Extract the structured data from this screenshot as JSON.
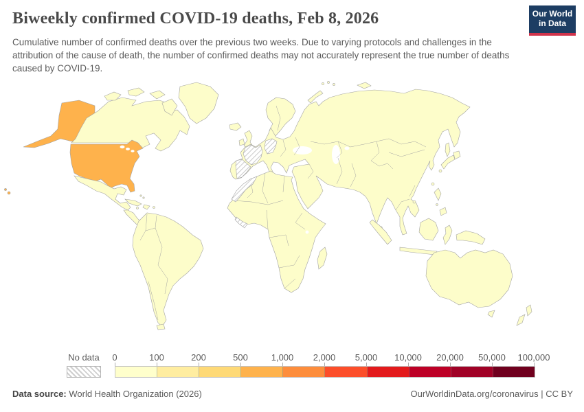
{
  "header": {
    "title": "Biweekly confirmed COVID-19 deaths, Feb 8, 2026",
    "subtitle": "Cumulative number of confirmed deaths over the previous two weeks. Due to varying protocols and challenges in the attribution of the cause of death, the number of confirmed deaths may not accurately represent the true number of deaths caused by COVID-19.",
    "logo": {
      "line1": "Our World",
      "line2": "in Data",
      "bg_color": "#1d3d63",
      "accent_color": "#d0334b"
    }
  },
  "map": {
    "ocean_color": "#ffffff",
    "default_land_color": "#fdfdca",
    "border_color": "#a3a3a3",
    "united_states_color": "#feb24c",
    "no_data_regions": [
      "France",
      "Spain",
      "Germany",
      "Morocco / Western Sahara",
      "Côte d'Ivoire"
    ]
  },
  "legend": {
    "no_data_label": "No data",
    "tick_labels": [
      "0",
      "100",
      "200",
      "500",
      "1,000",
      "2,000",
      "5,000",
      "10,000",
      "20,000",
      "50,000",
      "100,000"
    ],
    "bin_colors": [
      "#ffffcc",
      "#ffeda0",
      "#fed976",
      "#feb24c",
      "#fd8d3c",
      "#fc4e2a",
      "#e31a1c",
      "#bd0026",
      "#a00126",
      "#70001e"
    ]
  },
  "footer": {
    "source_label": "Data source:",
    "source_value": " World Health Organization (2026)",
    "url_text": "OurWorldinData.org/coronavirus",
    "separator": " | ",
    "license_text": "CC BY"
  },
  "chart_data": {
    "type": "choropleth_map",
    "title": "Biweekly confirmed COVID-19 deaths, Feb 8, 2026",
    "date": "Feb 8, 2026",
    "unit": "biweekly confirmed COVID-19 deaths",
    "legend_bins": [
      0,
      100,
      200,
      500,
      1000,
      2000,
      5000,
      10000,
      20000,
      50000,
      100000
    ],
    "bin_colors": [
      "#ffffcc",
      "#ffeda0",
      "#fed976",
      "#feb24c",
      "#fd8d3c",
      "#fc4e2a",
      "#e31a1c",
      "#bd0026",
      "#a00126",
      "#70001e"
    ],
    "legend_position": "bottom",
    "regions": [
      {
        "region": "United States (incl. Alaska, Hawaii)",
        "bin": "500–1,000",
        "color": "#feb24c"
      },
      {
        "region": "France",
        "value": "no data"
      },
      {
        "region": "Spain",
        "value": "no data"
      },
      {
        "region": "Germany",
        "value": "no data"
      },
      {
        "region": "Morocco / Western Sahara",
        "value": "no data"
      },
      {
        "region": "Côte d'Ivoire",
        "value": "no data"
      },
      {
        "region": "All other countries shown",
        "bin": "0–100",
        "color": "#ffffcc"
      }
    ],
    "source": "World Health Organization (2026)"
  }
}
